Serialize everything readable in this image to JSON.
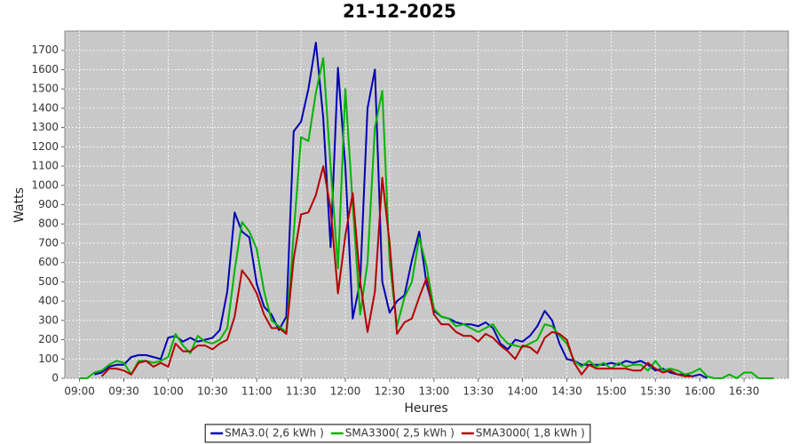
{
  "chart_data": {
    "type": "line",
    "title": "21-12-2025",
    "x_label": "Heures",
    "y_label": "Watts",
    "x": [
      "09:00",
      "09:05",
      "09:10",
      "09:15",
      "09:20",
      "09:25",
      "09:30",
      "09:35",
      "09:40",
      "09:45",
      "09:50",
      "09:55",
      "10:00",
      "10:05",
      "10:10",
      "10:15",
      "10:20",
      "10:25",
      "10:30",
      "10:35",
      "10:40",
      "10:45",
      "10:50",
      "10:55",
      "11:00",
      "11:05",
      "11:10",
      "11:15",
      "11:20",
      "11:25",
      "11:30",
      "11:35",
      "11:40",
      "11:45",
      "11:50",
      "11:55",
      "12:00",
      "12:05",
      "12:10",
      "12:15",
      "12:20",
      "12:25",
      "12:30",
      "12:35",
      "12:40",
      "12:45",
      "12:50",
      "12:55",
      "13:00",
      "13:05",
      "13:10",
      "13:15",
      "13:20",
      "13:25",
      "13:30",
      "13:35",
      "13:40",
      "13:45",
      "13:50",
      "13:55",
      "14:00",
      "14:05",
      "14:10",
      "14:15",
      "14:20",
      "14:25",
      "14:30",
      "14:35",
      "14:40",
      "14:45",
      "14:50",
      "14:55",
      "15:00",
      "15:05",
      "15:10",
      "15:15",
      "15:20",
      "15:25",
      "15:30",
      "15:35",
      "15:40",
      "15:45",
      "15:50",
      "15:55",
      "16:00",
      "16:05",
      "16:10",
      "16:15",
      "16:20",
      "16:25",
      "16:30",
      "16:35",
      "16:40",
      "16:45",
      "16:50"
    ],
    "series": [
      {
        "name": "SMA3.0( 2,6 kWh )",
        "color": "#0000b4",
        "values": [
          null,
          null,
          20,
          30,
          60,
          70,
          70,
          110,
          120,
          120,
          110,
          100,
          210,
          220,
          190,
          210,
          190,
          200,
          210,
          250,
          450,
          860,
          760,
          730,
          490,
          370,
          330,
          250,
          320,
          1280,
          1330,
          1500,
          1740,
          1350,
          680,
          1610,
          1100,
          310,
          500,
          1400,
          1600,
          500,
          340,
          400,
          430,
          610,
          760,
          490,
          350,
          320,
          310,
          290,
          280,
          280,
          270,
          290,
          260,
          180,
          150,
          200,
          190,
          220,
          270,
          350,
          300,
          180,
          100,
          90,
          70,
          70,
          70,
          70,
          80,
          70,
          90,
          80,
          90,
          70,
          40,
          50,
          30,
          20,
          20,
          10,
          20,
          0,
          null,
          null,
          null,
          null,
          null,
          null,
          null,
          null,
          null
        ]
      },
      {
        "name": "SMA3300( 2,5 kWh )",
        "color": "#00b400",
        "values": [
          0,
          0,
          30,
          40,
          70,
          90,
          80,
          20,
          90,
          90,
          80,
          90,
          110,
          230,
          170,
          130,
          220,
          190,
          180,
          200,
          260,
          560,
          810,
          760,
          670,
          450,
          300,
          270,
          240,
          750,
          1250,
          1230,
          1480,
          1660,
          1100,
          570,
          1500,
          900,
          330,
          600,
          1300,
          1490,
          600,
          270,
          420,
          500,
          730,
          580,
          360,
          320,
          310,
          270,
          280,
          260,
          240,
          260,
          280,
          220,
          180,
          170,
          160,
          180,
          200,
          280,
          270,
          220,
          180,
          90,
          60,
          90,
          60,
          80,
          50,
          80,
          60,
          70,
          70,
          40,
          90,
          40,
          50,
          40,
          20,
          30,
          50,
          10,
          0,
          0,
          20,
          0,
          30,
          30,
          0,
          0,
          0
        ]
      },
      {
        "name": "SMA3000( 1,8 kWh )",
        "color": "#b40000",
        "values": [
          null,
          null,
          null,
          10,
          50,
          50,
          40,
          20,
          80,
          90,
          60,
          80,
          60,
          180,
          140,
          140,
          170,
          170,
          150,
          180,
          200,
          320,
          560,
          510,
          440,
          330,
          260,
          260,
          230,
          620,
          850,
          860,
          950,
          1100,
          880,
          440,
          740,
          960,
          500,
          240,
          450,
          1040,
          700,
          230,
          290,
          310,
          420,
          520,
          330,
          280,
          280,
          240,
          220,
          220,
          190,
          230,
          210,
          170,
          140,
          100,
          170,
          160,
          130,
          210,
          240,
          230,
          200,
          80,
          20,
          70,
          50,
          50,
          50,
          50,
          50,
          40,
          40,
          80,
          50,
          30,
          40,
          20,
          10,
          10,
          null,
          null,
          null,
          null,
          null,
          null,
          null,
          null,
          null,
          null,
          null
        ]
      }
    ],
    "xlim": [
      "08:50",
      "17:00"
    ],
    "xticks": [
      "09:00",
      "09:30",
      "10:00",
      "10:30",
      "11:00",
      "11:30",
      "12:00",
      "12:30",
      "13:00",
      "13:30",
      "14:00",
      "14:30",
      "15:00",
      "15:30",
      "16:00",
      "16:30"
    ],
    "ylim": [
      0,
      1800
    ],
    "yticks": [
      0,
      100,
      200,
      300,
      400,
      500,
      600,
      700,
      800,
      900,
      1000,
      1100,
      1200,
      1300,
      1400,
      1500,
      1600,
      1700
    ],
    "grid": true,
    "legend": "bottom",
    "background": "#c8c8c8"
  }
}
